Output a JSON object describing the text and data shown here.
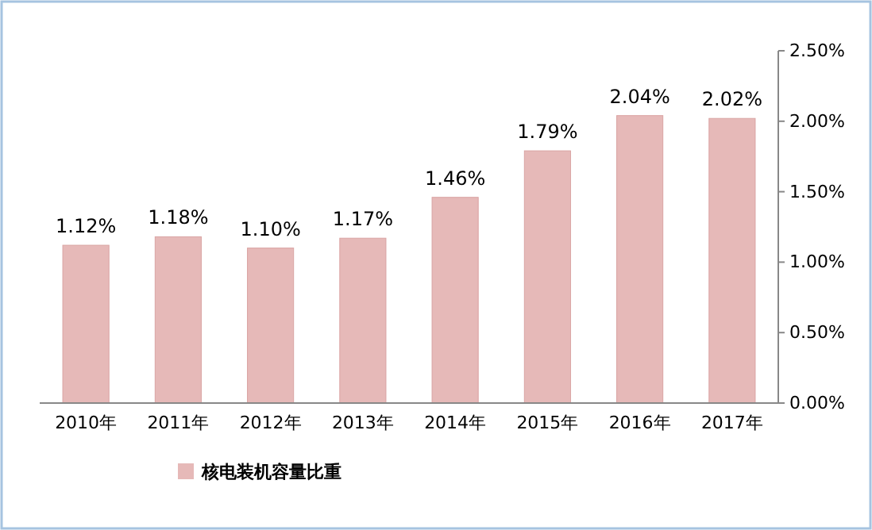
{
  "chart_data": {
    "type": "bar",
    "categories": [
      "2010年",
      "2011年",
      "2012年",
      "2013年",
      "2014年",
      "2015年",
      "2016年",
      "2017年"
    ],
    "series": [
      {
        "name": "核电装机容量比重",
        "color": "#e6b9b8",
        "values": [
          1.12,
          1.18,
          1.1,
          1.17,
          1.46,
          1.79,
          2.04,
          2.02
        ],
        "value_labels": [
          "1.12%",
          "1.18%",
          "1.10%",
          "1.17%",
          "1.46%",
          "1.79%",
          "2.04%",
          "2.02%"
        ]
      }
    ],
    "ylim": [
      0,
      2.5
    ],
    "yticks": [
      {
        "value": 0,
        "label": "0.00%"
      },
      {
        "value": 0.5,
        "label": "0.50%"
      },
      {
        "value": 1,
        "label": "1.00%"
      },
      {
        "value": 1.5,
        "label": "1.50%"
      },
      {
        "value": 2,
        "label": "2.00%"
      },
      {
        "value": 2.5,
        "label": "2.50%"
      }
    ],
    "grid": false,
    "legend": "bottom left"
  }
}
